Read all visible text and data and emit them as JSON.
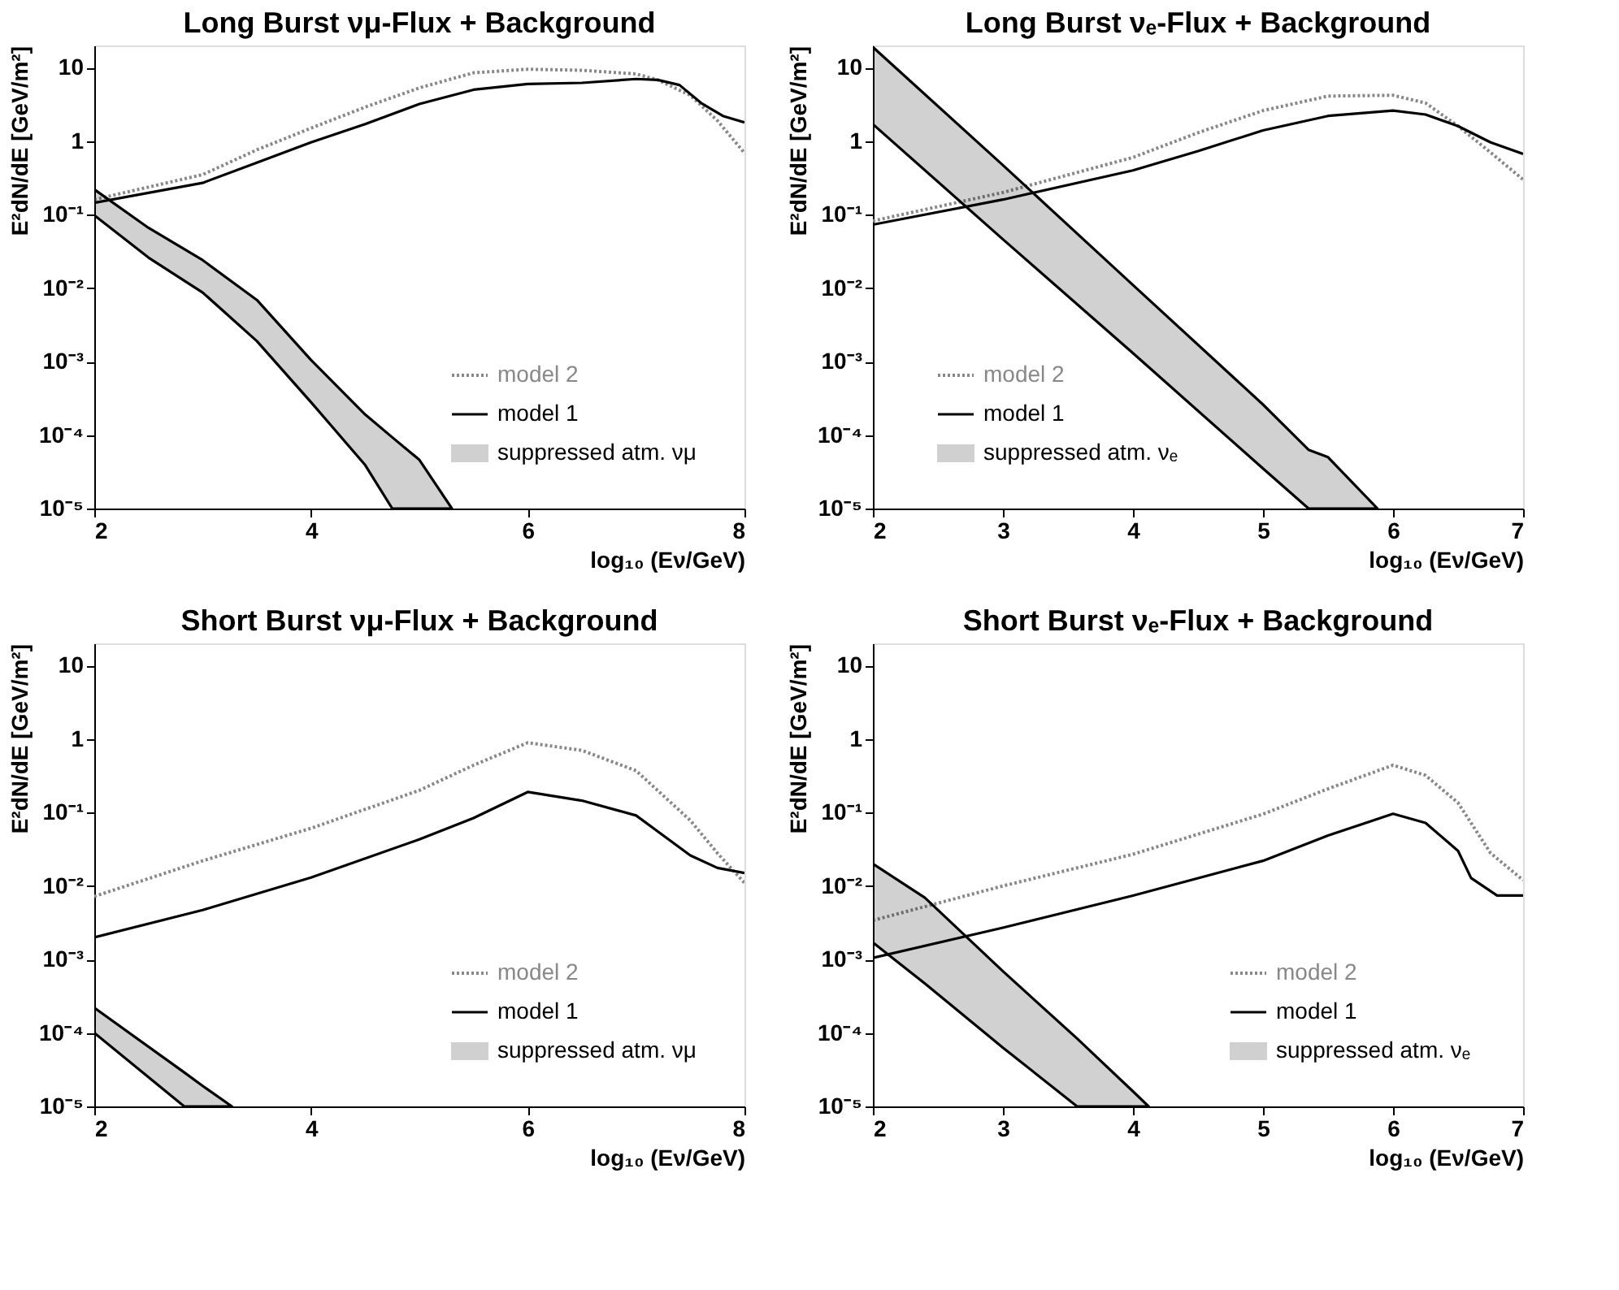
{
  "chart_data": [
    {
      "type": "line",
      "title": "Long Burst νμ-Flux + Background",
      "xlabel": "log₁₀ (Eν/GeV)",
      "ylabel": "E²dN/dE [GeV/m²]",
      "log": "y",
      "grid": false,
      "legend": "bottom right",
      "xlim": [
        2,
        8
      ],
      "xticks": [
        2,
        4,
        6,
        8
      ],
      "ylim": [
        1e-05,
        20
      ],
      "yticks": [
        {
          "value": 1e-05,
          "label": "10⁻⁵"
        },
        {
          "value": 0.0001,
          "label": "10⁻⁴"
        },
        {
          "value": 0.001,
          "label": "10⁻³"
        },
        {
          "value": 0.01,
          "label": "10⁻²"
        },
        {
          "value": 0.1,
          "label": "10⁻¹"
        },
        1,
        10
      ],
      "series": [
        {
          "name": "model 2",
          "line_style": "dotted",
          "color": "#888888",
          "x": [
            2,
            3,
            3.5,
            4,
            4.5,
            5,
            5.5,
            6,
            6.5,
            7,
            7.2,
            7.5,
            7.75,
            8
          ],
          "values": [
            0.16,
            0.35,
            0.76,
            1.5,
            2.9,
            5.3,
            8.5,
            9.5,
            9.2,
            8.2,
            6.8,
            4.2,
            1.9,
            0.69
          ]
        },
        {
          "name": "model 1",
          "color": "#000000",
          "x": [
            2,
            3,
            3.5,
            4,
            4.5,
            5,
            5.5,
            6,
            6.5,
            7,
            7.2,
            7.4,
            7.6,
            7.8,
            8
          ],
          "values": [
            0.145,
            0.27,
            0.51,
            0.96,
            1.7,
            3.2,
            5,
            6,
            6.2,
            7,
            6.8,
            5.8,
            3.3,
            2.2,
            1.8
          ]
        },
        {
          "name": "suppressed atm. νμ",
          "color": "#000000",
          "x": [
            2,
            2.5,
            3,
            3.5,
            4,
            4.5,
            4.75,
            5,
            5.3
          ],
          "values": [
            null,
            null,
            null,
            null,
            null,
            null,
            null,
            null,
            null
          ],
          "upper": [
            0.22,
            0.066,
            0.024,
            0.0069,
            0.00105,
            0.00019,
            9.3e-05,
            4.6e-05,
            1e-05
          ],
          "lower": [
            0.098,
            0.026,
            0.0087,
            0.0019,
            0.00028,
            3.9e-05,
            1e-05,
            1e-05,
            1e-05
          ]
        }
      ]
    },
    {
      "type": "line",
      "title": "Long Burst νₑ-Flux + Background",
      "xlabel": "log₁₀ (Eν/GeV)",
      "ylabel": "E²dN/dE [GeV/m²]",
      "log": "y",
      "grid": false,
      "legend": "bottom left",
      "xlim": [
        2,
        7
      ],
      "xticks": [
        2,
        3,
        4,
        5,
        6,
        7
      ],
      "ylim": [
        1e-05,
        20
      ],
      "yticks": [
        {
          "value": 1e-05,
          "label": "10⁻⁵"
        },
        {
          "value": 0.0001,
          "label": "10⁻⁴"
        },
        {
          "value": 0.001,
          "label": "10⁻³"
        },
        {
          "value": 0.01,
          "label": "10⁻²"
        },
        {
          "value": 0.1,
          "label": "10⁻¹"
        },
        1,
        10
      ],
      "series": [
        {
          "name": "model 2",
          "line_style": "dotted",
          "color": "#888888",
          "x": [
            2,
            3,
            4,
            4.5,
            5,
            5.5,
            6,
            6.25,
            6.5,
            6.75,
            7
          ],
          "values": [
            0.082,
            0.2,
            0.6,
            1.3,
            2.6,
            4.1,
            4.2,
            3.3,
            1.6,
            0.7,
            0.3
          ]
        },
        {
          "name": "model 1",
          "color": "#000000",
          "x": [
            2,
            3,
            4,
            4.5,
            5,
            5.5,
            6,
            6.25,
            6.5,
            6.75,
            7
          ],
          "values": [
            0.073,
            0.16,
            0.4,
            0.73,
            1.4,
            2.2,
            2.6,
            2.3,
            1.6,
            0.96,
            0.67
          ]
        },
        {
          "name": "suppressed atm. νₑ",
          "color": "#000000",
          "x": [
            2,
            3,
            4,
            5,
            5.35,
            5.5,
            5.88
          ],
          "values": [
            null,
            null,
            null,
            null,
            null,
            null,
            null
          ],
          "upper": [
            19,
            0.47,
            0.011,
            0.00026,
            6.3e-05,
            5e-05,
            1e-05
          ],
          "lower": [
            1.7,
            0.046,
            0.0013,
            3.5e-05,
            1e-05,
            1e-05,
            1e-05
          ]
        }
      ]
    },
    {
      "type": "line",
      "title": "Short Burst νμ-Flux + Background",
      "xlabel": "log₁₀ (Eν/GeV)",
      "ylabel": "E²dN/dE [GeV/m²]",
      "log": "y",
      "grid": false,
      "legend": "bottom right",
      "xlim": [
        2,
        8
      ],
      "xticks": [
        2,
        4,
        6,
        8
      ],
      "ylim": [
        1e-05,
        20
      ],
      "yticks": [
        {
          "value": 1e-05,
          "label": "10⁻⁵"
        },
        {
          "value": 0.0001,
          "label": "10⁻⁴"
        },
        {
          "value": 0.001,
          "label": "10⁻³"
        },
        {
          "value": 0.01,
          "label": "10⁻²"
        },
        {
          "value": 0.1,
          "label": "10⁻¹"
        },
        1,
        10
      ],
      "series": [
        {
          "name": "model 2",
          "line_style": "dotted",
          "color": "#888888",
          "x": [
            2,
            3,
            4,
            5,
            5.5,
            6,
            6.5,
            7,
            7.5,
            7.75,
            8
          ],
          "values": [
            0.0072,
            0.022,
            0.061,
            0.2,
            0.44,
            0.89,
            0.7,
            0.37,
            0.078,
            0.028,
            0.011
          ]
        },
        {
          "name": "model 1",
          "color": "#000000",
          "x": [
            2,
            3,
            4,
            5,
            5.5,
            6,
            6.5,
            7,
            7.5,
            7.75,
            8
          ],
          "values": [
            0.002,
            0.0047,
            0.013,
            0.043,
            0.084,
            0.19,
            0.145,
            0.091,
            0.026,
            0.0176,
            0.015
          ]
        },
        {
          "name": "suppressed atm. νμ",
          "color": "#000000",
          "x": [
            2,
            2.83,
            3,
            3.27
          ],
          "values": [
            null,
            null,
            null,
            null
          ],
          "upper": [
            0.00022,
            2.9e-05,
            1.9e-05,
            1e-05
          ],
          "lower": [
            0.0001,
            1e-05,
            1e-05,
            1e-05
          ]
        }
      ]
    },
    {
      "type": "line",
      "title": "Short Burst νₑ-Flux + Background",
      "xlabel": "log₁₀ (Eν/GeV)",
      "ylabel": "E²dN/dE [GeV/m²]",
      "log": "y",
      "grid": false,
      "legend": "bottom right",
      "xlim": [
        2,
        7
      ],
      "xticks": [
        2,
        3,
        4,
        5,
        6,
        7
      ],
      "ylim": [
        1e-05,
        20
      ],
      "yticks": [
        {
          "value": 1e-05,
          "label": "10⁻⁵"
        },
        {
          "value": 0.0001,
          "label": "10⁻⁴"
        },
        {
          "value": 0.001,
          "label": "10⁻³"
        },
        {
          "value": 0.01,
          "label": "10⁻²"
        },
        {
          "value": 0.1,
          "label": "10⁻¹"
        },
        1,
        10
      ],
      "series": [
        {
          "name": "model 2",
          "line_style": "dotted",
          "color": "#888888",
          "x": [
            2,
            3,
            4,
            5,
            5.5,
            6,
            6.25,
            6.5,
            6.75,
            7
          ],
          "values": [
            0.0034,
            0.01,
            0.027,
            0.095,
            0.21,
            0.44,
            0.32,
            0.135,
            0.028,
            0.012
          ]
        },
        {
          "name": "model 1",
          "color": "#000000",
          "x": [
            2,
            3,
            4,
            5,
            5.5,
            6,
            6.25,
            6.5,
            6.6,
            6.8,
            7
          ],
          "values": [
            0.00105,
            0.0027,
            0.0074,
            0.022,
            0.0485,
            0.096,
            0.072,
            0.03,
            0.0128,
            0.0074,
            0.0074
          ]
        },
        {
          "name": "suppressed atm. νₑ",
          "color": "#000000",
          "x": [
            2,
            2.4,
            3,
            3.57,
            4,
            4.12
          ],
          "values": [
            null,
            null,
            null,
            null,
            null,
            null
          ],
          "upper": [
            0.02,
            0.0069,
            0.00069,
            8.4e-05,
            1.6e-05,
            1e-05
          ],
          "lower": [
            0.0017,
            0.00047,
            6.3e-05,
            1e-05,
            1e-05,
            1e-05
          ]
        }
      ]
    }
  ]
}
